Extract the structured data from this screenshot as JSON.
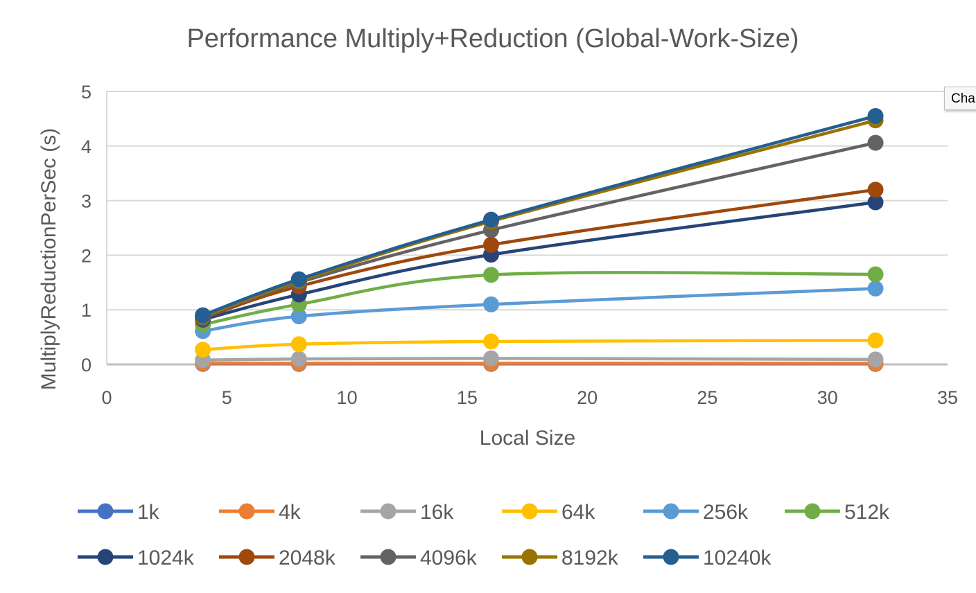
{
  "tooltip": {
    "text": "Cha"
  },
  "chart_data": {
    "type": "line",
    "title": "Performance Multiply+Reduction (Global-Work-Size)",
    "xlabel": "Local Size",
    "ylabel": "MultiplyReductionPerSec (s)",
    "xlim": [
      0,
      35
    ],
    "ylim": [
      0,
      5
    ],
    "x_ticks": [
      0,
      5,
      10,
      15,
      20,
      25,
      30,
      35
    ],
    "y_ticks": [
      0,
      1,
      2,
      3,
      4,
      5
    ],
    "grid": true,
    "smooth": true,
    "legend_position": "bottom",
    "x": [
      4,
      8,
      16,
      32
    ],
    "series": [
      {
        "name": "1k",
        "color": "#4472C4",
        "values": [
          0.01,
          0.01,
          0.01,
          0.01
        ]
      },
      {
        "name": "4k",
        "color": "#ED7D31",
        "values": [
          0.02,
          0.02,
          0.02,
          0.02
        ]
      },
      {
        "name": "16k",
        "color": "#A5A5A5",
        "values": [
          0.08,
          0.1,
          0.11,
          0.09
        ]
      },
      {
        "name": "64k",
        "color": "#FFC000",
        "values": [
          0.27,
          0.37,
          0.42,
          0.44
        ]
      },
      {
        "name": "256k",
        "color": "#5B9BD5",
        "values": [
          0.61,
          0.88,
          1.1,
          1.39
        ]
      },
      {
        "name": "512k",
        "color": "#70AD47",
        "values": [
          0.73,
          1.1,
          1.64,
          1.65
        ]
      },
      {
        "name": "1024k",
        "color": "#264478",
        "values": [
          0.82,
          1.28,
          2.01,
          2.97
        ]
      },
      {
        "name": "2048k",
        "color": "#9E480E",
        "values": [
          0.84,
          1.43,
          2.19,
          3.2
        ]
      },
      {
        "name": "4096k",
        "color": "#636363",
        "values": [
          0.86,
          1.5,
          2.46,
          4.06
        ]
      },
      {
        "name": "8192k",
        "color": "#997300",
        "values": [
          0.88,
          1.53,
          2.62,
          4.47
        ]
      },
      {
        "name": "10240k",
        "color": "#255E91",
        "values": [
          0.9,
          1.56,
          2.65,
          4.55
        ]
      }
    ]
  }
}
